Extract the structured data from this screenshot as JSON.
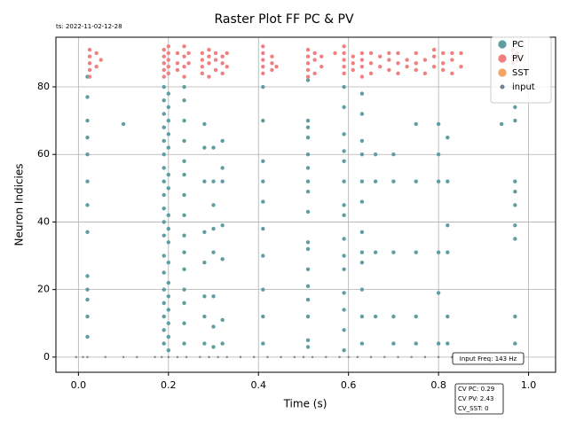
{
  "chart_data": {
    "type": "scatter",
    "title": "Raster Plot FF PC & PV",
    "timestamp": "ts: 2022-11-02-12-28",
    "xlabel": "Time (s)",
    "ylabel": "Neuron Indicies",
    "xlim": [
      -0.05,
      1.06
    ],
    "ylim": [
      -4.5,
      94.7
    ],
    "xticks": [
      {
        "value": 0,
        "label": "0.0"
      },
      0.2,
      0.4,
      0.6,
      0.8,
      {
        "value": 1,
        "label": "1.0"
      }
    ],
    "yticks": [
      0,
      20,
      40,
      60,
      80
    ],
    "grid": true,
    "legend_loc": "upper right",
    "annotations": [
      "Input Freq: 143 Hz"
    ],
    "stats_box": [
      "CV PC: 0.29",
      "CV PV: 2.43",
      "CV_SST: 0"
    ],
    "series": [
      {
        "name": "PC",
        "color": "#5f9ea0",
        "size": 2.2,
        "x": [
          0.02,
          0.02,
          0.02,
          0.02,
          0.02,
          0.02,
          0.02,
          0.02,
          0.02,
          0.02,
          0.02,
          0.02,
          0.02,
          0.19,
          0.19,
          0.19,
          0.19,
          0.19,
          0.19,
          0.19,
          0.19,
          0.19,
          0.19,
          0.19,
          0.19,
          0.19,
          0.19,
          0.19,
          0.19,
          0.19,
          0.19,
          0.19,
          0.2,
          0.2,
          0.2,
          0.2,
          0.2,
          0.2,
          0.2,
          0.2,
          0.2,
          0.2,
          0.2,
          0.2,
          0.2,
          0.2,
          0.2,
          0.2,
          0.2,
          0.235,
          0.235,
          0.235,
          0.235,
          0.235,
          0.235,
          0.235,
          0.235,
          0.235,
          0.235,
          0.235,
          0.235,
          0.235,
          0.235,
          0.235,
          0.28,
          0.28,
          0.28,
          0.28,
          0.28,
          0.28,
          0.28,
          0.28,
          0.3,
          0.3,
          0.3,
          0.3,
          0.3,
          0.3,
          0.3,
          0.3,
          0.32,
          0.32,
          0.32,
          0.32,
          0.32,
          0.32,
          0.32,
          0.41,
          0.41,
          0.41,
          0.41,
          0.41,
          0.41,
          0.41,
          0.41,
          0.41,
          0.41,
          0.51,
          0.51,
          0.51,
          0.51,
          0.51,
          0.51,
          0.51,
          0.51,
          0.51,
          0.51,
          0.51,
          0.51,
          0.51,
          0.51,
          0.51,
          0.51,
          0.51,
          0.59,
          0.59,
          0.59,
          0.59,
          0.59,
          0.59,
          0.59,
          0.59,
          0.59,
          0.59,
          0.59,
          0.59,
          0.59,
          0.59,
          0.59,
          0.63,
          0.63,
          0.63,
          0.63,
          0.63,
          0.63,
          0.63,
          0.63,
          0.63,
          0.63,
          0.63,
          0.63,
          0.66,
          0.66,
          0.66,
          0.66,
          0.7,
          0.7,
          0.7,
          0.7,
          0.7,
          0.75,
          0.75,
          0.75,
          0.75,
          0.75,
          0.8,
          0.8,
          0.8,
          0.8,
          0.8,
          0.8,
          0.82,
          0.82,
          0.82,
          0.82,
          0.82,
          0.82,
          0.97,
          0.97,
          0.97,
          0.97,
          0.97,
          0.97,
          0.97,
          0.97,
          0.97,
          0.1,
          0.94
        ],
        "values": [
          6,
          12,
          17,
          20,
          24,
          37,
          45,
          52,
          60,
          65,
          70,
          77,
          83,
          4,
          8,
          12,
          16,
          20,
          25,
          30,
          36,
          40,
          44,
          48,
          52,
          56,
          60,
          64,
          68,
          72,
          76,
          80,
          2,
          6,
          10,
          14,
          18,
          22,
          28,
          34,
          38,
          42,
          50,
          54,
          62,
          66,
          70,
          74,
          78,
          4,
          10,
          16,
          20,
          26,
          31,
          36,
          42,
          48,
          54,
          58,
          64,
          70,
          76,
          80,
          4,
          12,
          18,
          28,
          37,
          52,
          62,
          69,
          3,
          9,
          18,
          31,
          38,
          45,
          52,
          62,
          4,
          11,
          29,
          39,
          52,
          56,
          64,
          4,
          12,
          20,
          30,
          38,
          46,
          52,
          58,
          70,
          80,
          3,
          5,
          12,
          17,
          21,
          26,
          32,
          34,
          43,
          49,
          52,
          56,
          60,
          65,
          68,
          70,
          82,
          2,
          8,
          14,
          19,
          26,
          30,
          35,
          42,
          45,
          52,
          58,
          61,
          66,
          74,
          80,
          4,
          12,
          20,
          28,
          31,
          37,
          46,
          52,
          60,
          64,
          72,
          78,
          12,
          31,
          52,
          60,
          4,
          12,
          31,
          52,
          60,
          4,
          12,
          31,
          52,
          69,
          4,
          19,
          31,
          52,
          60,
          69,
          4,
          12,
          31,
          39,
          52,
          65,
          4,
          12,
          35,
          39,
          45,
          49,
          52,
          70,
          74,
          69,
          69
        ]
      },
      {
        "name": "PV",
        "color": "#f08080",
        "size": 2.2,
        "x": [
          0.025,
          0.025,
          0.025,
          0.025,
          0.025,
          0.04,
          0.04,
          0.05,
          0.19,
          0.19,
          0.19,
          0.19,
          0.19,
          0.2,
          0.2,
          0.2,
          0.2,
          0.2,
          0.22,
          0.22,
          0.22,
          0.235,
          0.235,
          0.235,
          0.235,
          0.245,
          0.245,
          0.275,
          0.275,
          0.275,
          0.275,
          0.29,
          0.29,
          0.29,
          0.29,
          0.305,
          0.305,
          0.305,
          0.32,
          0.32,
          0.32,
          0.33,
          0.33,
          0.41,
          0.41,
          0.41,
          0.41,
          0.41,
          0.43,
          0.43,
          0.43,
          0.44,
          0.51,
          0.51,
          0.51,
          0.51,
          0.51,
          0.525,
          0.525,
          0.525,
          0.54,
          0.54,
          0.57,
          0.59,
          0.59,
          0.59,
          0.59,
          0.59,
          0.61,
          0.61,
          0.61,
          0.63,
          0.63,
          0.63,
          0.63,
          0.65,
          0.65,
          0.65,
          0.67,
          0.67,
          0.69,
          0.69,
          0.69,
          0.71,
          0.71,
          0.71,
          0.73,
          0.73,
          0.75,
          0.75,
          0.75,
          0.77,
          0.77,
          0.79,
          0.79,
          0.79,
          0.81,
          0.81,
          0.81,
          0.83,
          0.83,
          0.83,
          0.85,
          0.85,
          0.965,
          0.965,
          0.965,
          0.975,
          0.975
        ],
        "values": [
          83,
          85,
          87,
          89,
          91,
          86,
          90,
          88,
          83,
          85,
          87,
          89,
          91,
          84,
          86,
          88,
          90,
          92,
          85,
          87,
          90,
          83,
          86,
          89,
          92,
          87,
          90,
          84,
          86,
          88,
          90,
          83,
          87,
          89,
          91,
          85,
          88,
          90,
          84,
          87,
          89,
          86,
          90,
          84,
          86,
          88,
          90,
          92,
          85,
          87,
          89,
          86,
          83,
          85,
          87,
          89,
          91,
          84,
          88,
          90,
          86,
          89,
          90,
          84,
          86,
          88,
          90,
          92,
          85,
          87,
          89,
          83,
          86,
          88,
          90,
          84,
          87,
          90,
          86,
          89,
          85,
          88,
          90,
          84,
          87,
          90,
          86,
          88,
          85,
          87,
          90,
          84,
          88,
          86,
          89,
          91,
          85,
          87,
          90,
          84,
          88,
          90,
          86,
          90,
          87,
          89,
          91,
          88,
          90
        ]
      },
      {
        "name": "SST",
        "color": "#f4a460",
        "size": 2.2,
        "x": [],
        "values": []
      },
      {
        "name": "input",
        "color": "#708090",
        "size": 1.2,
        "x": [
          -0.005,
          0.01,
          0.02,
          0.06,
          0.1,
          0.13,
          0.17,
          0.185,
          0.2,
          0.22,
          0.24,
          0.27,
          0.29,
          0.31,
          0.33,
          0.36,
          0.39,
          0.42,
          0.45,
          0.48,
          0.5,
          0.52,
          0.55,
          0.58,
          0.6,
          0.62,
          0.65,
          0.68,
          0.71,
          0.74,
          0.77,
          0.8,
          0.83,
          0.86,
          0.9,
          0.93,
          0.96,
          0.98
        ],
        "values": [
          0,
          0,
          0,
          0,
          0,
          0,
          0,
          0,
          0,
          0,
          0,
          0,
          0,
          0,
          0,
          0,
          0,
          0,
          0,
          0,
          0,
          0,
          0,
          0,
          0,
          0,
          0,
          0,
          0,
          0,
          0,
          0,
          0,
          0,
          0,
          0,
          0,
          0
        ]
      }
    ]
  }
}
